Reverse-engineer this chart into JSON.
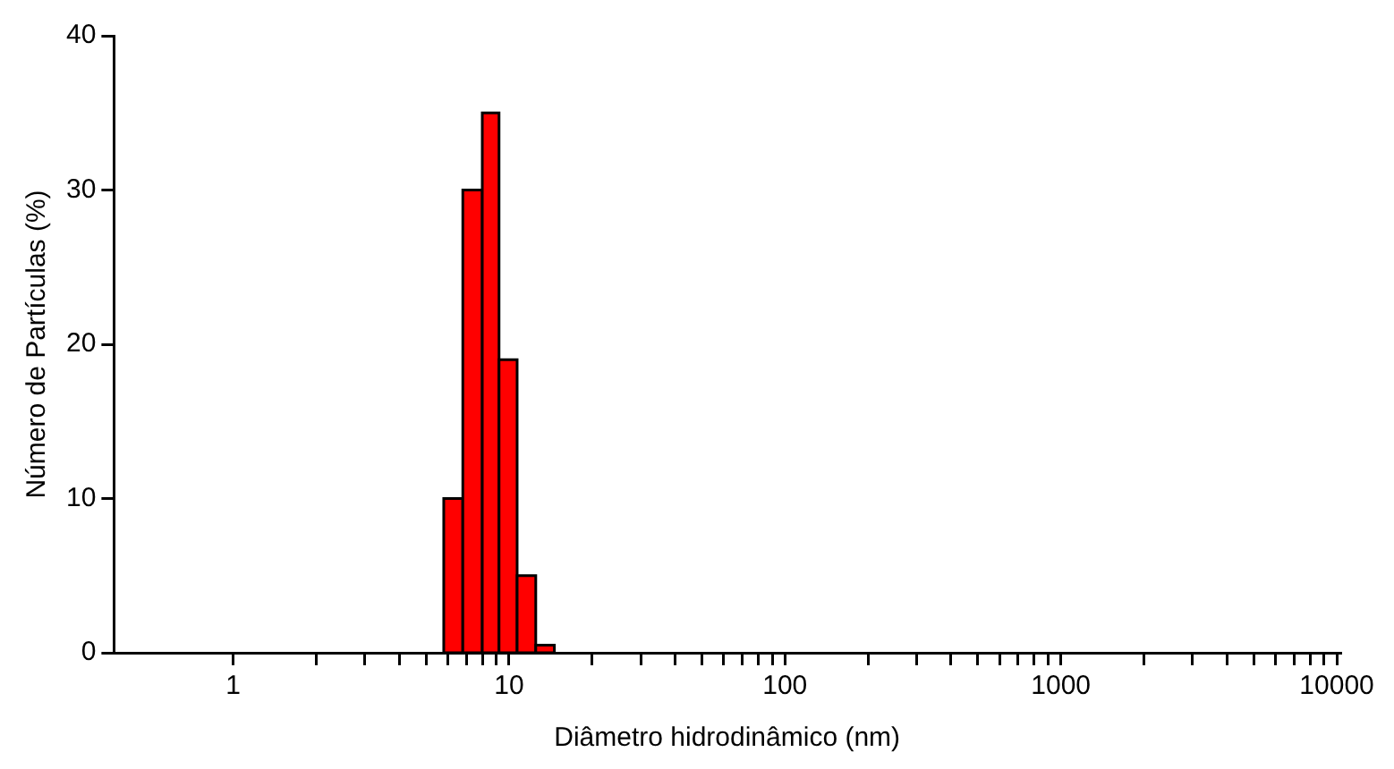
{
  "chart_data": {
    "type": "histogram",
    "xlabel": "Diâmetro hidrodinâmico (nm)",
    "ylabel": "Número de Partículas (%)",
    "bins": [
      5.8,
      6.8,
      8.0,
      9.2,
      10.7,
      12.5,
      14.6
    ],
    "values": [
      10,
      30,
      35,
      19,
      5,
      0.5
    ],
    "color": "#ff0000",
    "log": "x",
    "xlim": [
      0.37,
      10300
    ],
    "xticks": [
      1,
      {
        "value": 2,
        "label": null
      },
      {
        "value": 3,
        "label": null
      },
      {
        "value": 4,
        "label": null
      },
      {
        "value": 5,
        "label": null
      },
      {
        "value": 6,
        "label": null
      },
      {
        "value": 7,
        "label": null
      },
      {
        "value": 8,
        "label": null
      },
      {
        "value": 9,
        "label": null
      },
      10,
      {
        "value": 20,
        "label": null
      },
      {
        "value": 30,
        "label": null
      },
      {
        "value": 40,
        "label": null
      },
      {
        "value": 50,
        "label": null
      },
      {
        "value": 60,
        "label": null
      },
      {
        "value": 70,
        "label": null
      },
      {
        "value": 80,
        "label": null
      },
      {
        "value": 90,
        "label": null
      },
      100,
      {
        "value": 200,
        "label": null
      },
      {
        "value": 300,
        "label": null
      },
      {
        "value": 400,
        "label": null
      },
      {
        "value": 500,
        "label": null
      },
      {
        "value": 600,
        "label": null
      },
      {
        "value": 700,
        "label": null
      },
      {
        "value": 800,
        "label": null
      },
      {
        "value": 900,
        "label": null
      },
      1000,
      {
        "value": 2000,
        "label": null
      },
      {
        "value": 3000,
        "label": null
      },
      {
        "value": 4000,
        "label": null
      },
      {
        "value": 5000,
        "label": null
      },
      {
        "value": 6000,
        "label": null
      },
      {
        "value": 7000,
        "label": null
      },
      {
        "value": 8000,
        "label": null
      },
      {
        "value": 9000,
        "label": null
      },
      10000
    ],
    "ylim": [
      0,
      40
    ],
    "yticks": [
      0,
      10,
      20,
      30,
      40
    ],
    "grid": false,
    "legend": false
  }
}
